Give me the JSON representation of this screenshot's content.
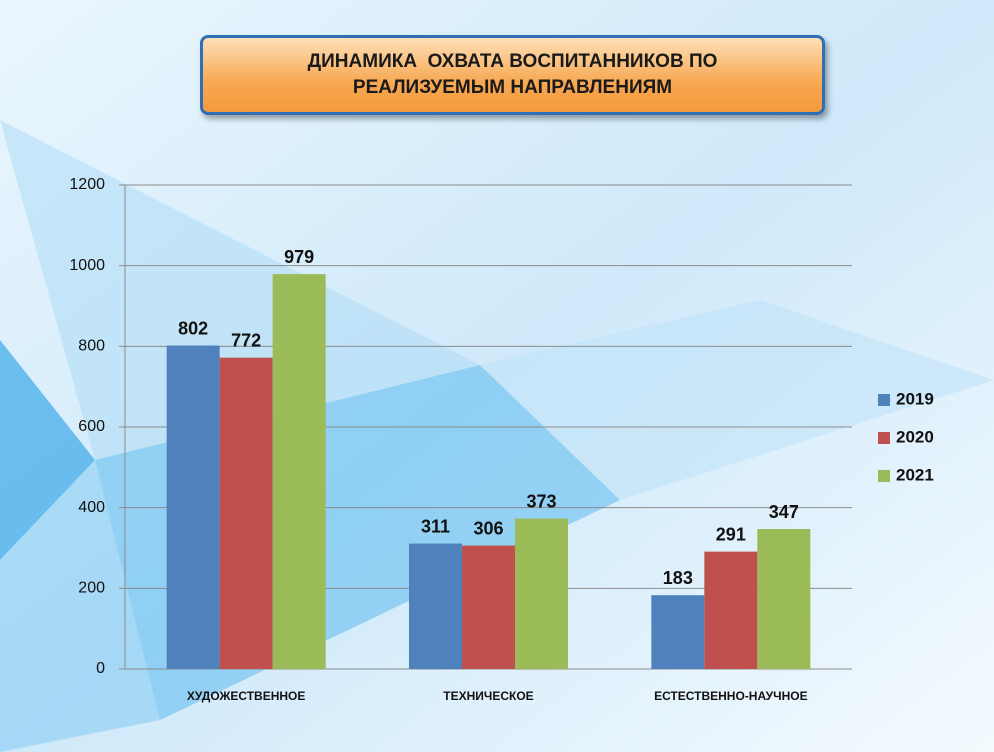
{
  "chart_data": {
    "type": "bar",
    "title": "ДИНАМИКА  ОХВАТА ВОСПИТАННИКОВ ПО РЕАЛИЗУЕМЫМ НАПРАВЛЕНИЯМ",
    "categories": [
      "ХУДОЖЕСТВЕННОЕ",
      "ТЕХНИЧЕСКОЕ",
      "ЕСТЕСТВЕННО-НАУЧНОЕ"
    ],
    "series": [
      {
        "name": "2019",
        "color": "#4f81bd",
        "values": [
          802,
          311,
          183
        ]
      },
      {
        "name": "2020",
        "color": "#c0504d",
        "values": [
          772,
          306,
          291
        ]
      },
      {
        "name": "2021",
        "color": "#9bbb59",
        "values": [
          979,
          373,
          347
        ]
      }
    ],
    "ylim": [
      0,
      1200
    ],
    "yticks": [
      0,
      200,
      400,
      600,
      800,
      1000,
      1200
    ],
    "grid": true,
    "legend": "right"
  }
}
